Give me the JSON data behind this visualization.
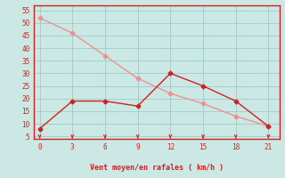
{
  "title": "",
  "xlabel": "Vent moyen/en rafales ( km/h )",
  "bg_color": "#cce8e4",
  "grid_color": "#99cccc",
  "line1_x": [
    0,
    3,
    6,
    9,
    12,
    15,
    18,
    21
  ],
  "line1_y": [
    52,
    46,
    37,
    28,
    22,
    18,
    13,
    9
  ],
  "line2_x": [
    0,
    3,
    6,
    9,
    12,
    15,
    18,
    21
  ],
  "line2_y": [
    8,
    19,
    19,
    17,
    30,
    25,
    19,
    9
  ],
  "line1_color": "#f09090",
  "line2_color": "#cc2222",
  "xlim": [
    -0.5,
    22
  ],
  "ylim": [
    4,
    57
  ],
  "xticks": [
    0,
    3,
    6,
    9,
    12,
    15,
    18,
    21
  ],
  "yticks": [
    5,
    10,
    15,
    20,
    25,
    30,
    35,
    40,
    45,
    50,
    55
  ],
  "marker": "D",
  "marker_size": 2.5,
  "linewidth": 1.0,
  "xlabel_color": "#cc2222",
  "tick_color": "#cc2222",
  "axis_color": "#cc2222",
  "arrow_color": "#cc2222",
  "tick_fontsize": 5.5,
  "xlabel_fontsize": 6.0
}
